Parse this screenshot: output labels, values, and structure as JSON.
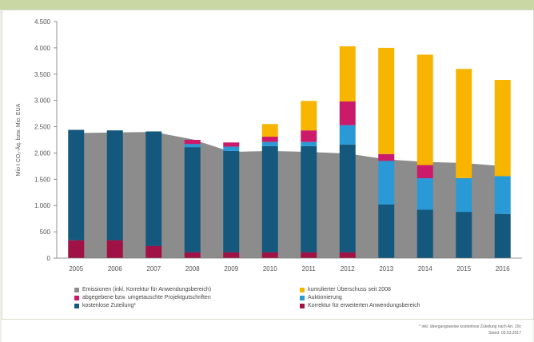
{
  "header": {
    "text": ""
  },
  "chart_data": {
    "type": "bar",
    "ylabel": "Mio t CO₂-Äq. bzw. Mio. EUA",
    "ylim": [
      0,
      4500
    ],
    "yticks": [
      0,
      500,
      1000,
      1500,
      2000,
      2500,
      3000,
      3500,
      4000,
      4500
    ],
    "ytick_labels": [
      "0",
      "500",
      "1.000",
      "1.500",
      "2.000",
      "2.500",
      "3.000",
      "3.500",
      "4.000",
      "4.500"
    ],
    "categories": [
      "2005",
      "2006",
      "2007",
      "2008",
      "2009",
      "2010",
      "2011",
      "2012",
      "2013",
      "2014",
      "2015",
      "2016"
    ],
    "area": {
      "name": "Emissionen (inkl. Korrektur für Anwendungsbereich)",
      "color": "#8c8c8c",
      "values": [
        2380,
        2390,
        2400,
        2260,
        2020,
        2040,
        2020,
        1990,
        1880,
        1830,
        1810,
        1750
      ]
    },
    "series": [
      {
        "name": "kostenlose Zuteilung*",
        "color": "#14587e",
        "values": [
          2100,
          2090,
          2180,
          2000,
          1930,
          2020,
          2020,
          2050,
          1020,
          920,
          880,
          840
        ]
      },
      {
        "name": "Korrektur für erweiterten Anwendungsbereich",
        "color": "#a01245",
        "values": [
          340,
          340,
          230,
          110,
          110,
          110,
          110,
          110,
          0,
          0,
          0,
          0
        ]
      },
      {
        "name": "Auktionierung",
        "color": "#2a9ad6",
        "values": [
          0,
          0,
          0,
          60,
          80,
          80,
          80,
          370,
          830,
          600,
          640,
          720
        ]
      },
      {
        "name": "abgegebene bzw. umgetauschte Projektgutschriften",
        "color": "#cc1a6b",
        "values": [
          0,
          0,
          0,
          80,
          80,
          100,
          220,
          450,
          130,
          250,
          0,
          0
        ]
      },
      {
        "name": "kumulierter Überschuss seit 2008",
        "color": "#f7b500",
        "values": [
          0,
          0,
          0,
          0,
          0,
          240,
          560,
          1050,
          2020,
          2100,
          2080,
          1830
        ]
      }
    ],
    "legend": [
      {
        "label": "Emissionen (inkl. Korrektur für Anwendungsbereich)",
        "color": "#8c8c8c"
      },
      {
        "label": "kumulierter Überschuss seit 2008",
        "color": "#f7b500"
      },
      {
        "label": "abgegebene bzw. umgetauschte Projektgutschriften",
        "color": "#cc1a6b"
      },
      {
        "label": "Auktionierung",
        "color": "#2a9ad6"
      },
      {
        "label": "kostenlose Zuteilung*",
        "color": "#14587e"
      },
      {
        "label": "Korrektur für erweiterten Anwendungsbereich",
        "color": "#a01245"
      }
    ],
    "legend_placement": "bottom",
    "grid": false
  },
  "footnotes": {
    "line1": "* inkl. übergangsweise kostenlose Zuteilung nach Art. 10c",
    "line2": "Stand: 03.03.2017"
  }
}
